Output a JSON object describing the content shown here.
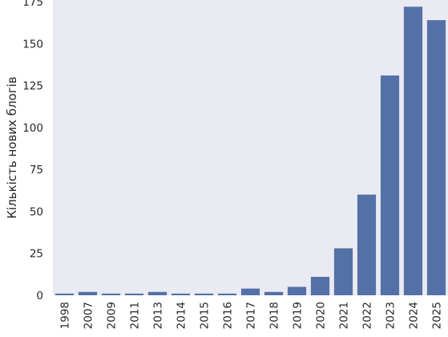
{
  "chart_data": {
    "type": "bar",
    "title": "",
    "xlabel": "",
    "ylabel": "Кількість нових блогів",
    "categories": [
      "1998",
      "2007",
      "2009",
      "2011",
      "2013",
      "2014",
      "2015",
      "2016",
      "2017",
      "2018",
      "2019",
      "2020",
      "2021",
      "2022",
      "2023",
      "2024",
      "2025"
    ],
    "values": [
      1,
      2,
      1,
      1,
      2,
      1,
      1,
      1,
      4,
      2,
      5,
      11,
      28,
      60,
      131,
      172,
      164
    ],
    "ylim": [
      0,
      176
    ],
    "yticks": [
      0,
      25,
      50,
      75,
      100,
      125,
      150,
      175
    ],
    "grid": false,
    "legend": "none",
    "colors": {
      "bar": "#5471a7",
      "background": "#eaeaf2"
    }
  }
}
